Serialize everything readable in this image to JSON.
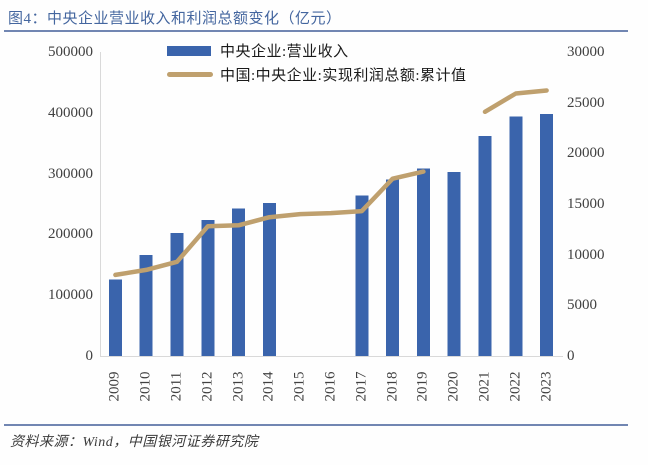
{
  "title": "图4：中央企业营业收入和利润总额变化（亿元）",
  "footer": "资料来源：Wind，中国银河证券研究院",
  "colors": {
    "bar": "#3a64ac",
    "line": "#bfa06e",
    "title_text": "#44669f",
    "rule": "#7186b2",
    "axis_text": "#404040",
    "plot_border": "#d9d9d9"
  },
  "chart_data": {
    "type": "combo",
    "title": "中央企业营业收入和利润总额变化（亿元）",
    "categories": [
      "2009",
      "2010",
      "2011",
      "2012",
      "2013",
      "2014",
      "2015",
      "2016",
      "2017",
      "2018",
      "2019",
      "2020",
      "2021",
      "2022",
      "2023"
    ],
    "series": [
      {
        "name": "中央企业:营业收入",
        "type": "bar",
        "axis": "left",
        "values": [
          126000,
          166000,
          202000,
          224000,
          243000,
          252000,
          null,
          null,
          264000,
          290000,
          308000,
          303000,
          362000,
          394000,
          398000
        ]
      },
      {
        "name": "中国:中央企业:实现利润总额:累计值",
        "type": "line",
        "axis": "right",
        "values": [
          8000,
          8500,
          9300,
          12800,
          12900,
          13700,
          14000,
          14100,
          14300,
          17500,
          18200,
          null,
          24100,
          25900,
          26200
        ]
      }
    ],
    "left_axis": {
      "min": 0,
      "max": 500000,
      "step": 100000,
      "tick_labels": [
        "0",
        "100000",
        "200000",
        "300000",
        "400000",
        "500000"
      ]
    },
    "right_axis": {
      "min": 0,
      "max": 30000,
      "step": 5000,
      "tick_labels": [
        "0",
        "5000",
        "10000",
        "15000",
        "20000",
        "25000",
        "30000"
      ]
    },
    "grid": false,
    "legend_position": "top"
  }
}
